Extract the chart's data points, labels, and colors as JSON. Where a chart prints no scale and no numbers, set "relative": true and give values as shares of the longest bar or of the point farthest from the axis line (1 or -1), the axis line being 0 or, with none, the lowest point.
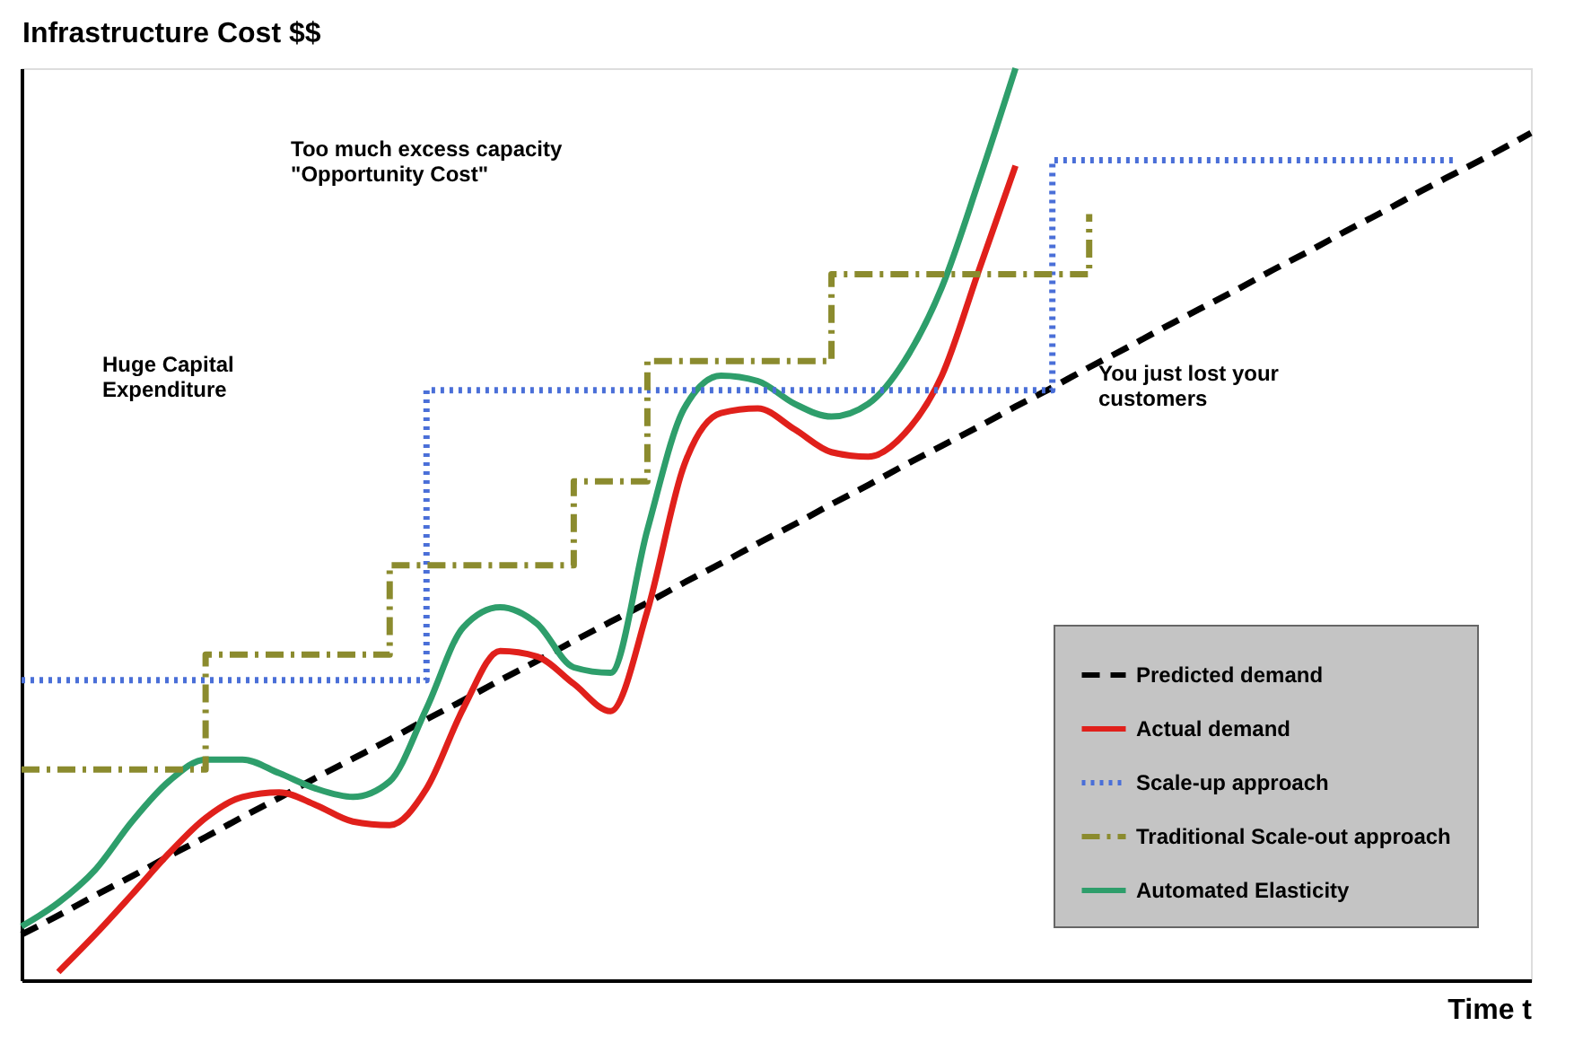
{
  "chart_data": {
    "type": "line",
    "relative": true,
    "xlabel": "Time t",
    "ylabel": "Infrastructure Cost $$",
    "grid": false,
    "legend": "bottom right",
    "categories": [
      null,
      null,
      null,
      null,
      null,
      null,
      null,
      null,
      null,
      null,
      null,
      null,
      null,
      null,
      null,
      null,
      null,
      null,
      null,
      null,
      null,
      null,
      null,
      null,
      null,
      null,
      null,
      null,
      null,
      null,
      null,
      null,
      null,
      null,
      null,
      null,
      null,
      null,
      null,
      null,
      null,
      null
    ],
    "series": [
      {
        "name": "Predicted demand",
        "color": "#000000",
        "line_style": "dashed",
        "values": [
          0.05,
          0.071,
          0.093,
          0.114,
          0.136,
          0.157,
          0.179,
          0.2,
          0.222,
          0.243,
          0.264,
          0.286,
          0.307,
          0.329,
          0.35,
          0.372,
          0.393,
          0.414,
          0.436,
          0.457,
          0.479,
          0.5,
          0.522,
          0.543,
          0.565,
          0.586,
          0.607,
          0.629,
          0.65,
          0.672,
          0.693,
          0.715,
          0.736,
          0.757,
          0.779,
          0.8,
          0.822,
          0.843,
          0.865,
          0.886,
          0.907,
          0.929
        ]
      },
      {
        "name": "Actual demand",
        "color": "#e0201b",
        "line_style": "solid",
        "values": [
          null,
          0.009,
          0.05,
          0.094,
          0.139,
          0.178,
          0.201,
          0.206,
          0.192,
          0.174,
          0.17,
          0.21,
          0.298,
          0.361,
          0.355,
          0.325,
          0.295,
          0.405,
          0.565,
          0.622,
          0.627,
          0.604,
          0.579,
          0.574,
          0.6,
          0.663,
          0.778,
          0.893,
          null,
          null,
          null,
          null,
          null,
          null,
          null,
          null,
          null,
          null,
          null,
          null,
          null,
          null
        ]
      },
      {
        "name": "Scale-up approach",
        "color": "#4a6fd8",
        "type": "step",
        "line_style": "dotted",
        "values": [
          0.329,
          0.329,
          0.329,
          0.329,
          0.329,
          0.329,
          0.329,
          0.329,
          0.329,
          0.329,
          0.329,
          0.647,
          0.647,
          0.647,
          0.647,
          0.647,
          0.647,
          0.647,
          0.647,
          0.647,
          0.647,
          0.647,
          0.647,
          0.647,
          0.647,
          0.647,
          0.647,
          0.647,
          0.899,
          0.899,
          0.899,
          0.899,
          0.899,
          0.899,
          0.899,
          0.899,
          0.899,
          0.899,
          0.899,
          0.899,
          null,
          null
        ]
      },
      {
        "name": "Traditional Scale-out approach",
        "color": "#8b8b2e",
        "type": "step",
        "line_style": "dashdot",
        "values": [
          0.231,
          0.231,
          0.231,
          0.231,
          0.231,
          0.357,
          0.357,
          0.357,
          0.357,
          0.357,
          0.455,
          0.455,
          0.455,
          0.455,
          0.455,
          0.547,
          0.547,
          0.679,
          0.679,
          0.679,
          0.679,
          0.679,
          0.774,
          0.774,
          0.774,
          0.774,
          0.774,
          0.774,
          0.774,
          0.84,
          null,
          null,
          null,
          null,
          null,
          null,
          null,
          null,
          null,
          null,
          null,
          null
        ]
      },
      {
        "name": "Automated Elasticity",
        "color": "#2e9e6b",
        "line_style": "solid",
        "values": [
          0.059,
          0.085,
          0.121,
          0.174,
          0.218,
          0.242,
          0.242,
          0.227,
          0.21,
          0.201,
          0.218,
          0.298,
          0.387,
          0.409,
          0.391,
          0.343,
          0.337,
          0.494,
          0.627,
          0.663,
          0.657,
          0.632,
          0.618,
          0.632,
          0.68,
          0.76,
          0.876,
          1.0,
          null,
          null,
          null,
          null,
          null,
          null,
          null,
          null,
          null,
          null,
          null,
          null,
          null,
          null
        ]
      }
    ],
    "annotations": [
      "Too much excess capacity\n\"Opportunity Cost\"",
      "Huge Capital\nExpenditure",
      "You just lost your\ncustomers"
    ]
  }
}
